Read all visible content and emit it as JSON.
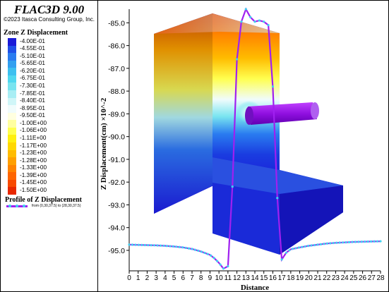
{
  "app": {
    "title": "FLAC3D 9.00",
    "copyright": "©2023 Itasca Consulting Group, Inc."
  },
  "legend": {
    "title": "Zone Z Displacement",
    "entries": [
      {
        "label": "-4.00E-01",
        "color": "#1a1ad8"
      },
      {
        "label": "-4.55E-01",
        "color": "#2050e8"
      },
      {
        "label": "-5.10E-01",
        "color": "#2a7cf0"
      },
      {
        "label": "-5.65E-01",
        "color": "#32a0f0"
      },
      {
        "label": "-6.20E-01",
        "color": "#3cc0f0"
      },
      {
        "label": "-6.75E-01",
        "color": "#50d8f0"
      },
      {
        "label": "-7.30E-01",
        "color": "#78e4f0"
      },
      {
        "label": "-7.85E-01",
        "color": "#a8eef4"
      },
      {
        "label": "-8.40E-01",
        "color": "#d0f6f8"
      },
      {
        "label": "-8.95E-01",
        "color": "#f0fcfc"
      },
      {
        "label": "-9.50E-01",
        "color": "#ffffe0"
      },
      {
        "label": "-1.00E+00",
        "color": "#ffffa0"
      },
      {
        "label": "-1.06E+00",
        "color": "#ffff50"
      },
      {
        "label": "-1.11E+00",
        "color": "#fff010"
      },
      {
        "label": "-1.17E+00",
        "color": "#ffd800"
      },
      {
        "label": "-1.23E+00",
        "color": "#ffbc00"
      },
      {
        "label": "-1.28E+00",
        "color": "#ffa000"
      },
      {
        "label": "-1.33E+00",
        "color": "#ff8400"
      },
      {
        "label": "-1.39E+00",
        "color": "#ff6600"
      },
      {
        "label": "-1.45E+00",
        "color": "#f84a00"
      },
      {
        "label": "-1.50E+00",
        "color": "#e82800"
      }
    ],
    "profile_title": "Profile of Z Displacement",
    "profile_subtitle": "from (0,30,37.5) to (28,30,37.5)",
    "profile_color": "#a020f0",
    "profile_marker_color": "#40d0f0"
  },
  "chart_data": {
    "type": "line",
    "xlabel": "Distance",
    "ylabel": "Z Displacement(cm) ×10^-2",
    "xlim": [
      0,
      28
    ],
    "ylim": [
      -95.9,
      -84.4
    ],
    "x_ticks": [
      "0",
      "1",
      "2",
      "3",
      "4",
      "5",
      "6",
      "7",
      "8",
      "9",
      "10",
      "11",
      "12",
      "13",
      "14",
      "15",
      "16",
      "17",
      "18",
      "19",
      "20",
      "21",
      "22",
      "23",
      "24",
      "25",
      "26",
      "27",
      "28"
    ],
    "y_ticks": [
      "-85.0",
      "-86.0",
      "-87.0",
      "-88.0",
      "-89.0",
      "-90.0",
      "-91.0",
      "-92.0",
      "-93.0",
      "-94.0",
      "-95.0"
    ],
    "series": [
      {
        "x": [
          0,
          1,
          2,
          3,
          4,
          5,
          6,
          7,
          8,
          9,
          9.5,
          10,
          10.5,
          11,
          11.5,
          12,
          12.5,
          13,
          13.5,
          14,
          14.5,
          15,
          15.5,
          16,
          16.5,
          17,
          17.5,
          18,
          19,
          20,
          21,
          22,
          23,
          24,
          25,
          26,
          27,
          28
        ],
        "y": [
          -94.75,
          -94.76,
          -94.77,
          -94.78,
          -94.8,
          -94.83,
          -94.87,
          -94.94,
          -95.05,
          -95.2,
          -95.35,
          -95.55,
          -95.8,
          -95.7,
          -92.2,
          -86.6,
          -84.95,
          -84.4,
          -84.75,
          -84.95,
          -84.9,
          -84.95,
          -85.1,
          -87.8,
          -92.7,
          -95.4,
          -95.1,
          -94.95,
          -94.87,
          -94.8,
          -94.75,
          -94.7,
          -94.67,
          -94.65,
          -94.63,
          -94.62,
          -94.61,
          -94.6
        ]
      }
    ]
  }
}
